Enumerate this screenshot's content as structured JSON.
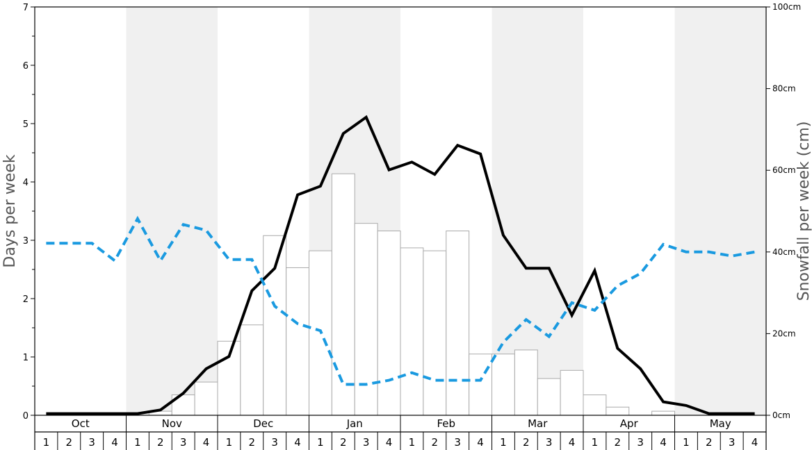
{
  "chart_data": {
    "type": "bar",
    "ylabel": "Days per week",
    "ylabel_right": "Snowfall per week (cm)",
    "y_ticks": [
      "0",
      "1",
      "2",
      "3",
      "4",
      "5",
      "6",
      "7"
    ],
    "y_right_ticks": [
      "0cm",
      "20cm",
      "40cm",
      "60cm",
      "80cm",
      "100cm"
    ],
    "ylim": [
      0,
      7
    ],
    "ylim_right": [
      0,
      100
    ],
    "months": [
      "Oct",
      "Nov",
      "Dec",
      "Jan",
      "Feb",
      "Mar",
      "Apr",
      "May"
    ],
    "weeks": [
      "1",
      "2",
      "3",
      "4"
    ],
    "shaded_months": [
      "Nov",
      "Jan",
      "Mar",
      "May"
    ],
    "grid": false,
    "series": [
      {
        "kind": "bar",
        "axis": "left",
        "color": "#ffffff",
        "stroke": "#aaaaaa",
        "values": [
          0,
          0,
          0,
          0,
          0,
          0.07,
          0.35,
          0.57,
          1.27,
          1.55,
          3.08,
          2.53,
          2.82,
          4.14,
          3.29,
          3.16,
          2.87,
          2.82,
          3.16,
          1.05,
          1.05,
          1.12,
          0.63,
          0.77,
          0.35,
          0.14,
          0,
          0.07,
          0,
          0,
          0,
          0
        ]
      },
      {
        "kind": "line",
        "axis": "right",
        "color": "#000000",
        "values": [
          0.4,
          0.4,
          0.4,
          0.4,
          0.4,
          1.3,
          5.4,
          11.4,
          14.4,
          30.5,
          36.0,
          54.0,
          56.1,
          69.0,
          73.0,
          60.1,
          62.0,
          59.0,
          66.1,
          64.0,
          44.1,
          36.0,
          36.0,
          24.5,
          35.4,
          16.4,
          11.4,
          3.3,
          2.4,
          0.4,
          0.4,
          0.4
        ]
      },
      {
        "kind": "dashed-line",
        "axis": "left",
        "color": "#1a9ae0",
        "values": [
          2.95,
          2.95,
          2.95,
          2.65,
          3.37,
          2.65,
          3.27,
          3.17,
          2.67,
          2.67,
          1.87,
          1.57,
          1.45,
          0.53,
          0.53,
          0.6,
          0.73,
          0.6,
          0.6,
          0.6,
          1.25,
          1.64,
          1.35,
          1.93,
          1.8,
          2.22,
          2.43,
          2.93,
          2.8,
          2.8,
          2.73,
          2.8
        ]
      }
    ]
  }
}
